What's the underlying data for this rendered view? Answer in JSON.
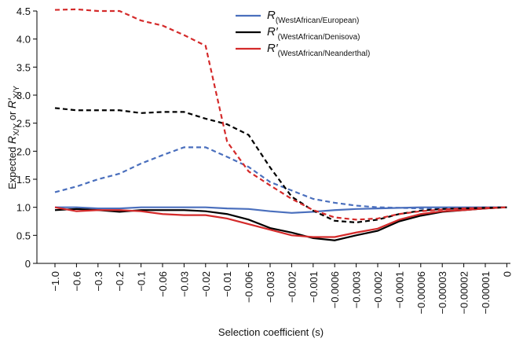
{
  "chart_data": {
    "type": "line",
    "ylabel_parts": [
      "Expected ",
      "R",
      "X/Y",
      " or ",
      "R′",
      "X/Y"
    ],
    "xlabel": "Selection coefficient (s)",
    "categories": [
      "−1.0",
      "−0.6",
      "−0.3",
      "−0.2",
      "−0.1",
      "−0.06",
      "−0.03",
      "−0.02",
      "−0.01",
      "−0.006",
      "−0.003",
      "−0.002",
      "−0.001",
      "−0.0006",
      "−0.0003",
      "−0.0002",
      "−0.0001",
      "−0.00006",
      "−0.00003",
      "−0.00002",
      "−0.00001",
      "0"
    ],
    "ylim": [
      0,
      4.5
    ],
    "yticks": [
      0,
      0.5,
      {
        "value": 1,
        "label": "1.0"
      },
      1.5,
      {
        "value": 2,
        "label": "2.0"
      },
      2.5,
      {
        "value": 3,
        "label": "3.0"
      },
      3.5,
      {
        "value": 4,
        "label": "4.0"
      },
      4.5
    ],
    "series": [
      {
        "name": "R(WestAfrican/European)",
        "color": "#4a6fbd",
        "dash": false,
        "values": [
          1.0,
          1.0,
          0.98,
          0.98,
          1.0,
          1.0,
          1.0,
          1.0,
          0.98,
          0.97,
          0.93,
          0.9,
          0.92,
          0.95,
          0.97,
          0.98,
          0.99,
          1.0,
          1.0,
          1.0,
          1.0,
          1.0
        ]
      },
      {
        "name": "R′(WestAfrican/Denisova)",
        "color": "#000000",
        "dash": false,
        "values": [
          0.95,
          0.97,
          0.95,
          0.92,
          0.95,
          0.95,
          0.95,
          0.93,
          0.88,
          0.78,
          0.63,
          0.55,
          0.45,
          0.41,
          0.5,
          0.58,
          0.75,
          0.85,
          0.92,
          0.95,
          0.98,
          1.0
        ]
      },
      {
        "name": "R′(WestAfrican/Neanderthal)",
        "color": "#d42a2a",
        "dash": false,
        "values": [
          1.0,
          0.93,
          0.95,
          0.95,
          0.93,
          0.88,
          0.86,
          0.86,
          0.8,
          0.7,
          0.6,
          0.5,
          0.47,
          0.47,
          0.55,
          0.62,
          0.78,
          0.88,
          0.93,
          0.95,
          0.98,
          1.0
        ]
      },
      {
        "color": "#4a6fbd",
        "dash": true,
        "values": [
          1.27,
          1.37,
          1.5,
          1.6,
          1.78,
          1.93,
          2.07,
          2.07,
          1.9,
          1.72,
          1.45,
          1.3,
          1.15,
          1.08,
          1.03,
          1.0,
          0.99,
          0.98,
          0.98,
          0.99,
          1.0,
          1.0
        ]
      },
      {
        "color": "#000000",
        "dash": true,
        "values": [
          2.77,
          2.73,
          2.73,
          2.73,
          2.68,
          2.7,
          2.7,
          2.58,
          2.48,
          2.29,
          1.71,
          1.19,
          0.94,
          0.76,
          0.73,
          0.78,
          0.88,
          0.94,
          0.97,
          0.98,
          0.99,
          1.0
        ]
      },
      {
        "color": "#d42a2a",
        "dash": true,
        "values": [
          4.52,
          4.53,
          4.5,
          4.5,
          4.33,
          4.24,
          4.07,
          3.88,
          2.17,
          1.64,
          1.39,
          1.15,
          0.95,
          0.82,
          0.78,
          0.8,
          0.88,
          0.93,
          0.96,
          0.98,
          0.99,
          1.0
        ]
      }
    ]
  }
}
